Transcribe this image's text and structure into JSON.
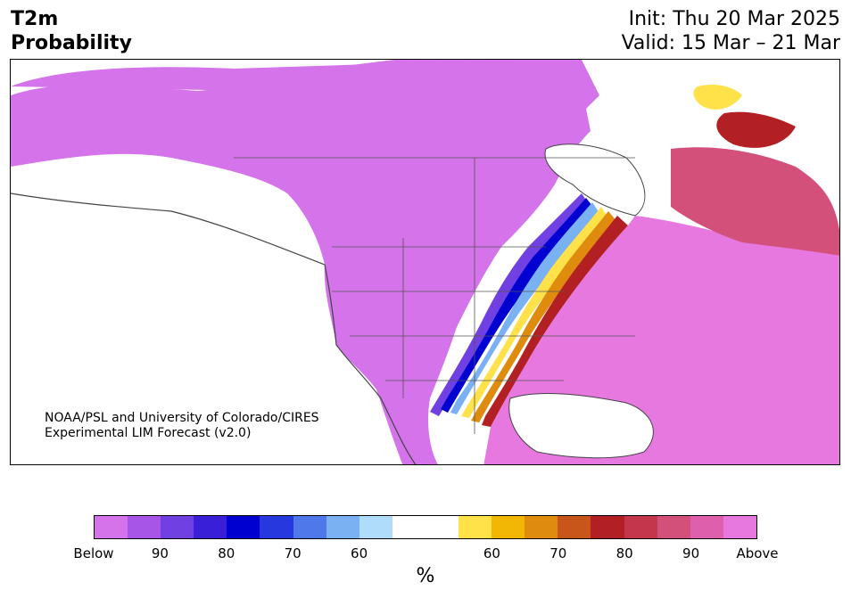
{
  "title": {
    "line1": "T2m",
    "line2": "Probability",
    "init": "Init: Thu 20 Mar 2025",
    "valid": "Valid: 15 Mar – 21 Mar"
  },
  "credit": {
    "line1": "NOAA/PSL and University of Colorado/CIRES",
    "line2": "Experimental LIM Forecast (v2.0)"
  },
  "colorbar": {
    "colors": [
      "#d473ea",
      "#a655e6",
      "#7140e2",
      "#3a1fd9",
      "#0000d1",
      "#2639de",
      "#4f78ea",
      "#7ab1f3",
      "#b0dcfc",
      "#ffffff",
      "#ffffff",
      "#ffe24a",
      "#f2b705",
      "#de8b0e",
      "#c8561a",
      "#b32024",
      "#c4364a",
      "#d3507a",
      "#de60ad",
      "#e678e0"
    ],
    "tick_labels": [
      "Below",
      "90",
      "80",
      "70",
      "60",
      "60",
      "70",
      "80",
      "90",
      "Above"
    ],
    "unit": "%"
  },
  "map_colors": {
    "below_strong": "#d473ea",
    "below_mid": "#7140e2",
    "below_deep": "#0000d1",
    "below_light": "#7ab1f3",
    "neutral": "#ffffff",
    "above_light": "#ffe24a",
    "above_mid": "#de8b0e",
    "above_deep": "#b32024",
    "above_strong": "#e678e0",
    "above_rose": "#d3507a"
  }
}
